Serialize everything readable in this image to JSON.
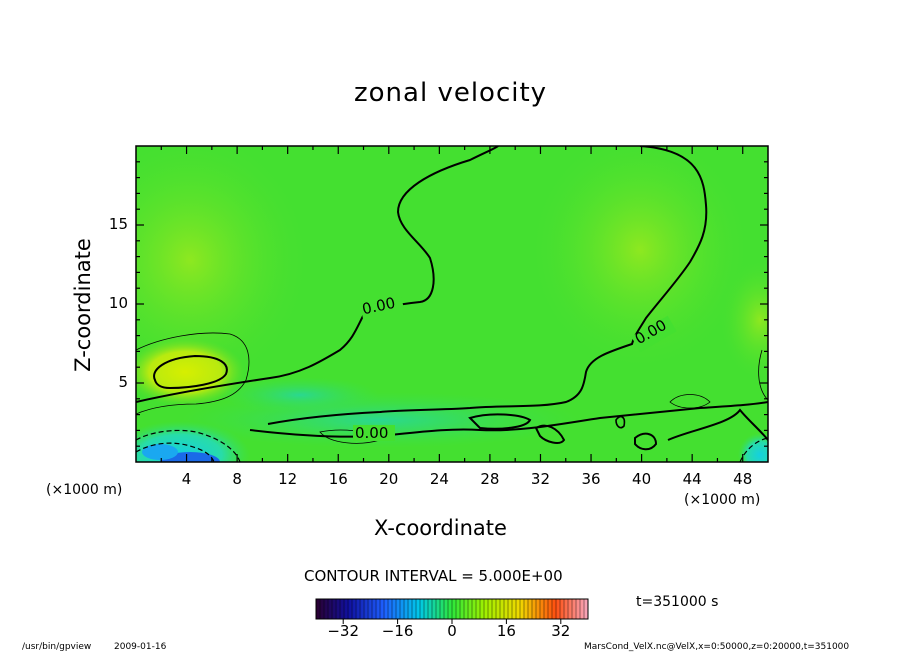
{
  "chart_data": {
    "type": "heatmap",
    "title": "zonal velocity",
    "xlabel": "X-coordinate",
    "ylabel": "Z-coordinate",
    "x_unit": "(×1000 m)",
    "y_unit": "(×1000 m)",
    "xlim": [
      0,
      50
    ],
    "ylim": [
      0,
      20
    ],
    "x_ticks": [
      4,
      8,
      12,
      16,
      20,
      24,
      28,
      32,
      36,
      40,
      44,
      48
    ],
    "y_ticks": [
      5,
      10,
      15
    ],
    "contour_labels": [
      "0.00",
      "0.00",
      "0.00"
    ],
    "contour_interval_text": "CONTOUR INTERVAL = 5.000E+00",
    "time_label": "t=351000 s",
    "colorbar": {
      "range": [
        -40,
        40
      ],
      "ticks": [
        -32,
        -16,
        0,
        16,
        32
      ],
      "tick_labels": [
        "−32",
        "−16",
        "0",
        "16",
        "32"
      ]
    },
    "grid": false
  },
  "footer": {
    "program": "/usr/bin/gpview",
    "date": "2009-01-16",
    "source": "MarsCond_VelX.nc@VelX,x=0:50000,z=0:20000,t=351000"
  }
}
